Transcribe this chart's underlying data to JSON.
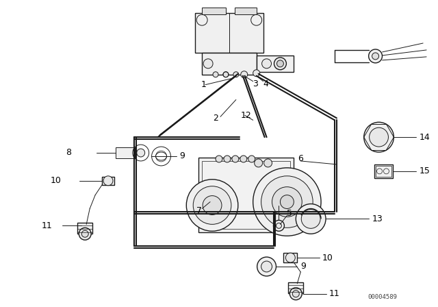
{
  "bg_color": "#ffffff",
  "line_color": "#1a1a1a",
  "label_color": "#000000",
  "watermark": "00004589",
  "fig_width": 6.4,
  "fig_height": 4.48,
  "dpi": 100
}
